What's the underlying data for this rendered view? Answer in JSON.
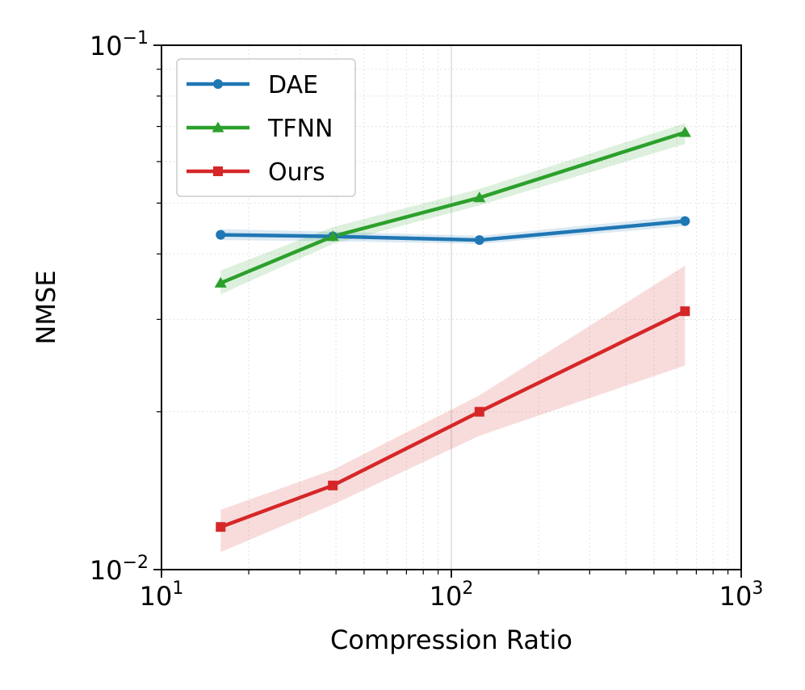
{
  "chart_data": {
    "type": "line",
    "title": "",
    "xlabel": "Compression Ratio",
    "ylabel": "NMSE",
    "xscale": "log",
    "yscale": "log",
    "xlim": [
      10,
      1000
    ],
    "ylim": [
      0.01,
      0.1
    ],
    "grid": true,
    "legend_position": "top-left",
    "x": [
      16,
      39,
      125,
      640
    ],
    "x_ticks": [
      {
        "value": 10,
        "base": "10",
        "exp": "1"
      },
      {
        "value": 100,
        "base": "10",
        "exp": "2"
      },
      {
        "value": 1000,
        "base": "10",
        "exp": "3"
      }
    ],
    "y_ticks": [
      {
        "value": 0.01,
        "base": "10",
        "exp": "−2"
      },
      {
        "value": 0.1,
        "base": "10",
        "exp": "−1"
      }
    ],
    "series": [
      {
        "name": "DAE",
        "color": "#1f77b4",
        "marker": "circle",
        "values": [
          0.0435,
          0.0432,
          0.0425,
          0.0462
        ],
        "lower": [
          0.0425,
          0.0423,
          0.0418,
          0.0452
        ],
        "upper": [
          0.0446,
          0.0441,
          0.0433,
          0.0473
        ]
      },
      {
        "name": "TFNN",
        "color": "#2ca02c",
        "marker": "triangle",
        "values": [
          0.0352,
          0.0432,
          0.0512,
          0.0682
        ],
        "lower": [
          0.0335,
          0.0418,
          0.0495,
          0.0648
        ],
        "upper": [
          0.0372,
          0.045,
          0.0532,
          0.071
        ]
      },
      {
        "name": "Ours",
        "color": "#d62728",
        "marker": "square",
        "values": [
          0.01206,
          0.01447,
          0.02,
          0.0311
        ],
        "lower": [
          0.0108,
          0.0133,
          0.018,
          0.0245
        ],
        "upper": [
          0.013,
          0.0155,
          0.0215,
          0.038
        ]
      }
    ]
  }
}
